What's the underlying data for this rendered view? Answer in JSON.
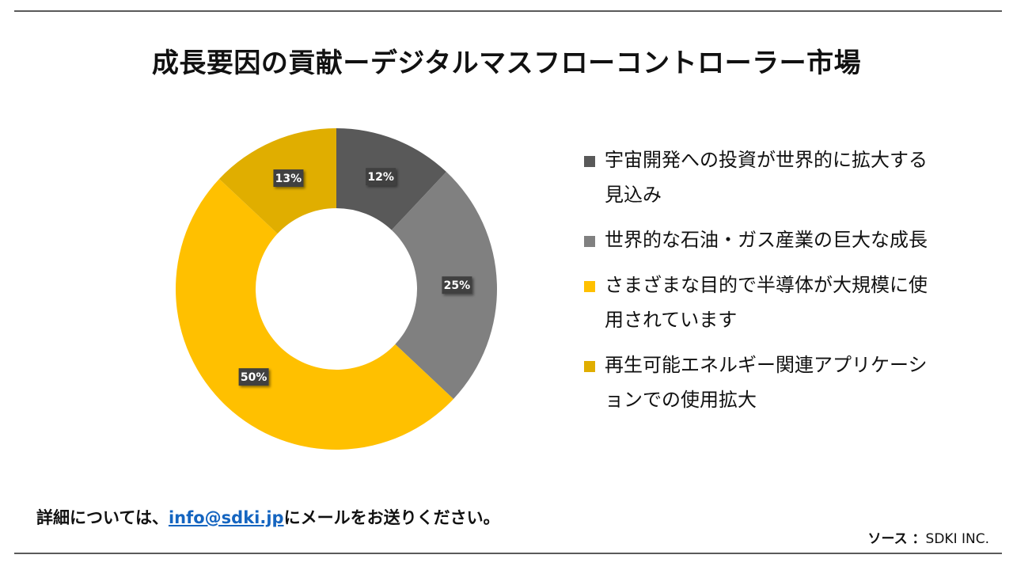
{
  "page": {
    "title": "成長要因の貢献ーデジタルマスフローコントローラー市場",
    "contact": {
      "prefix": "詳細については、",
      "email": "info@sdki.jp",
      "suffix": "にメールをお送りください。"
    },
    "source": {
      "label": "ソース ：",
      "value": "SDKI INC."
    }
  },
  "chart_data": {
    "type": "pie",
    "donut": true,
    "slices": [
      {
        "name": "宇宙開発への投資が世界的に拡大する見込み",
        "value": 12,
        "label": "12%",
        "color": "#595959"
      },
      {
        "name": "世界的な石油・ガス産業の巨大な成長",
        "value": 25,
        "label": "25%",
        "color": "#808080"
      },
      {
        "name": "さまざまな目的で半導体が大規模に使用されています",
        "value": 50,
        "label": "50%",
        "color": "#FFC000"
      },
      {
        "name": "再生可能エネルギー関連アプリケーションでの使用拡大",
        "value": 13,
        "label": "13%",
        "color": "#E0AE00"
      }
    ],
    "legend_position": "right"
  }
}
